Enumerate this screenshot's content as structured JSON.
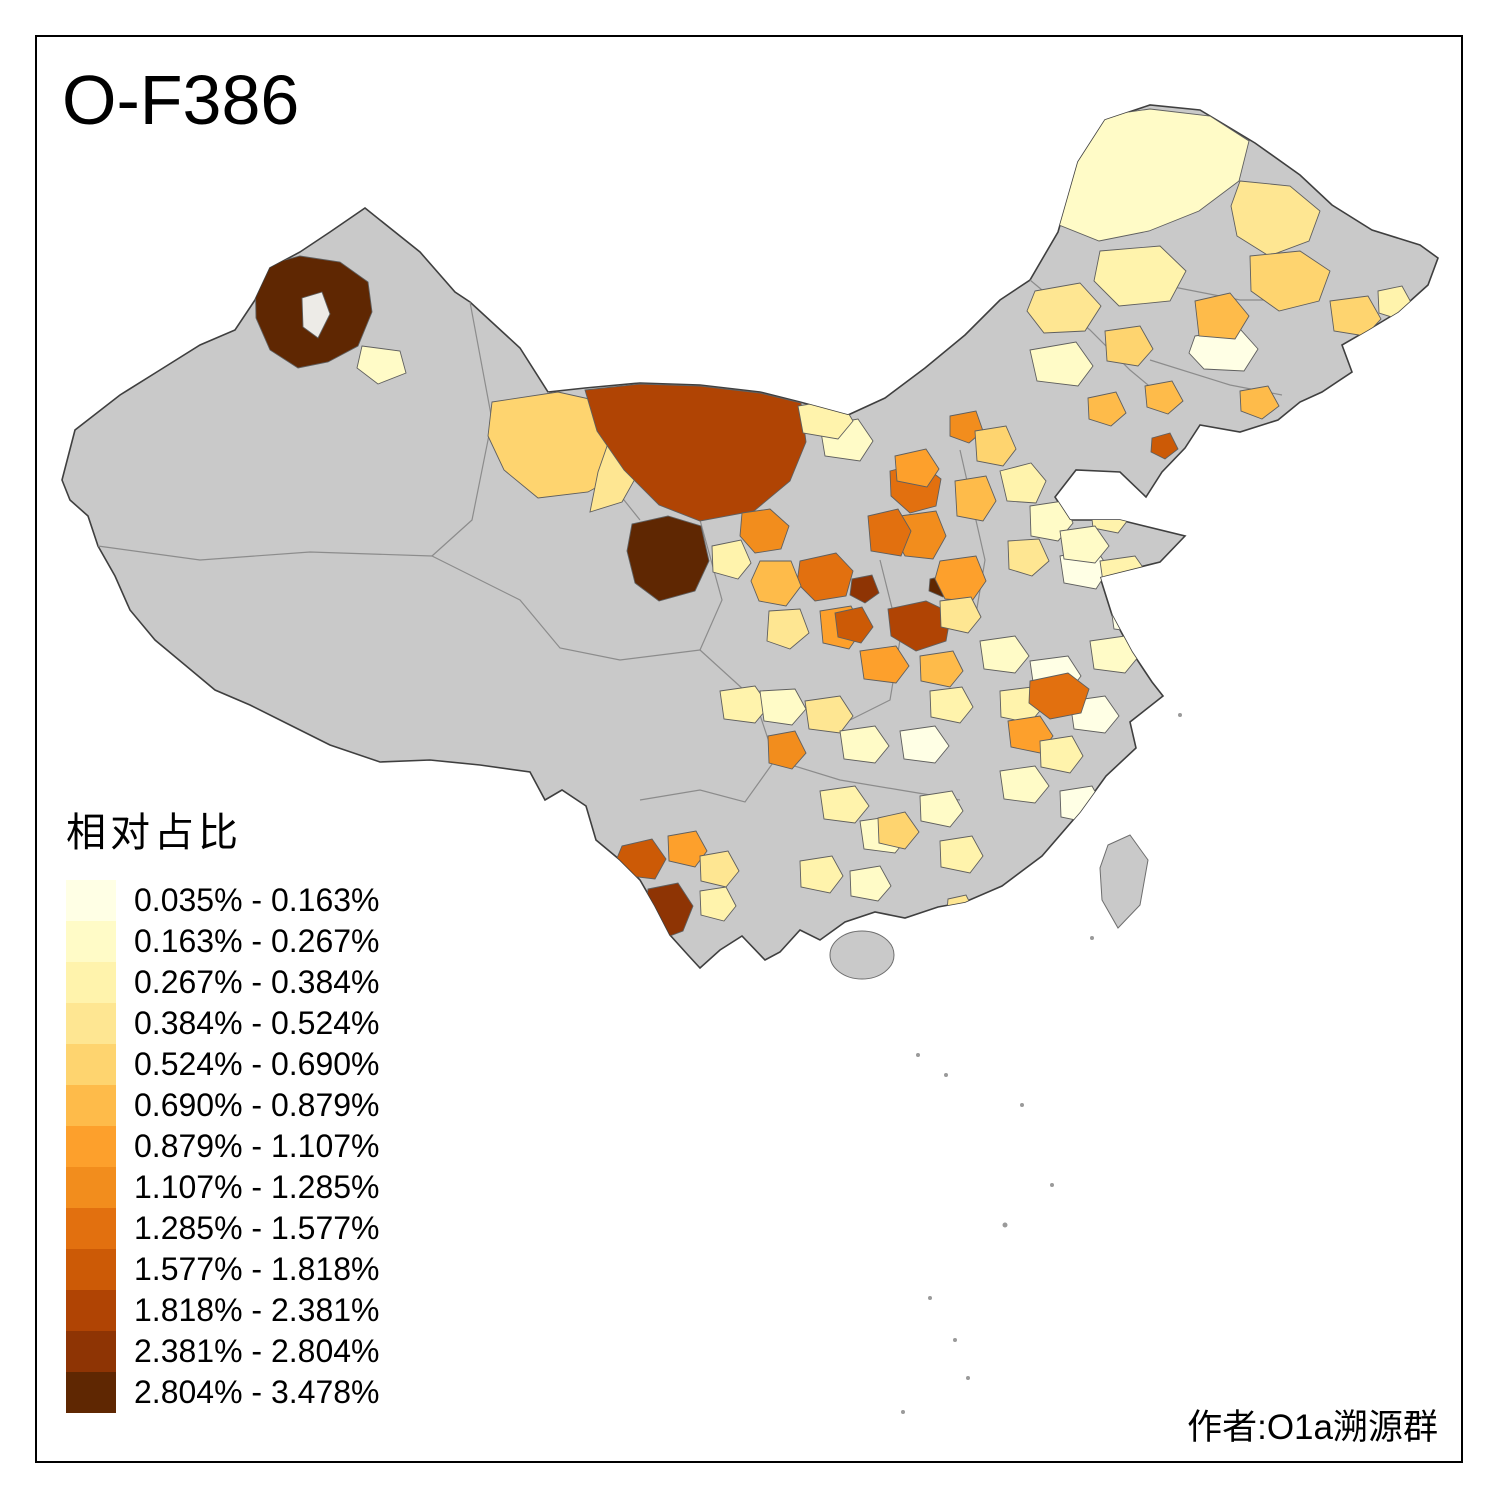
{
  "title": "O-F386",
  "legend": {
    "title": "相对占比",
    "items": [
      {
        "label": "0.035% - 0.163%",
        "color": "#FFFFE5"
      },
      {
        "label": "0.163% - 0.267%",
        "color": "#FFFBC7"
      },
      {
        "label": "0.267% - 0.384%",
        "color": "#FFF3AC"
      },
      {
        "label": "0.384% - 0.524%",
        "color": "#FEE692"
      },
      {
        "label": "0.524% - 0.690%",
        "color": "#FED46F"
      },
      {
        "label": "0.690% - 0.879%",
        "color": "#FEBB4A"
      },
      {
        "label": "0.879% - 1.107%",
        "color": "#FDA02C"
      },
      {
        "label": "1.107% - 1.285%",
        "color": "#F28D1D"
      },
      {
        "label": "1.285% - 1.577%",
        "color": "#E2700F"
      },
      {
        "label": "1.577% - 1.818%",
        "color": "#CC5A06"
      },
      {
        "label": "1.818% - 2.381%",
        "color": "#B04404"
      },
      {
        "label": "2.381% - 2.804%",
        "color": "#8E3404"
      },
      {
        "label": "2.804% - 3.478%",
        "color": "#5F2702"
      }
    ]
  },
  "credit": "作者:O1a溯源群",
  "map": {
    "no_data_color": "#C9C9C9",
    "lake_color": "#EDEBE7",
    "outline_color": "#3F3F3F",
    "province_border_color": "#8C8C8C"
  }
}
